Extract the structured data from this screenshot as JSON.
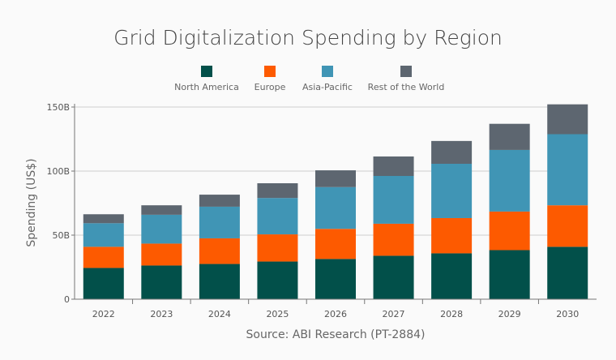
{
  "chart_data": {
    "type": "bar",
    "stacked": true,
    "title": "Grid Digitalization Spending by Region",
    "ylabel": "Spending (US$)",
    "xlabel": "",
    "source": "Source: ABI Research (PT-2884)",
    "categories": [
      "2022",
      "2023",
      "2024",
      "2025",
      "2026",
      "2027",
      "2028",
      "2029",
      "2030"
    ],
    "ylim": [
      0,
      150
    ],
    "yticks": [
      0,
      50,
      100,
      150
    ],
    "ytick_labels": [
      "0",
      "50B",
      "100B",
      "150B"
    ],
    "grid": true,
    "legend_position": "top",
    "series": [
      {
        "name": "North America",
        "color": "#02504a",
        "values": [
          24.4,
          26.3,
          27.5,
          29.4,
          31.4,
          33.9,
          35.8,
          38.3,
          40.9
        ]
      },
      {
        "name": "Europe",
        "color": "#fd5a00",
        "values": [
          16.5,
          17.1,
          20.0,
          21.2,
          23.5,
          25.0,
          27.5,
          30.1,
          32.4
        ]
      },
      {
        "name": "Asia-Pacific",
        "color": "#4095b5",
        "values": [
          18.4,
          22.5,
          24.7,
          28.4,
          32.6,
          37.3,
          42.4,
          48.1,
          55.5
        ]
      },
      {
        "name": "Rest of the World",
        "color": "#5d6670",
        "values": [
          7.0,
          7.4,
          9.4,
          11.5,
          13.1,
          15.2,
          17.8,
          20.4,
          23.3
        ]
      }
    ]
  }
}
